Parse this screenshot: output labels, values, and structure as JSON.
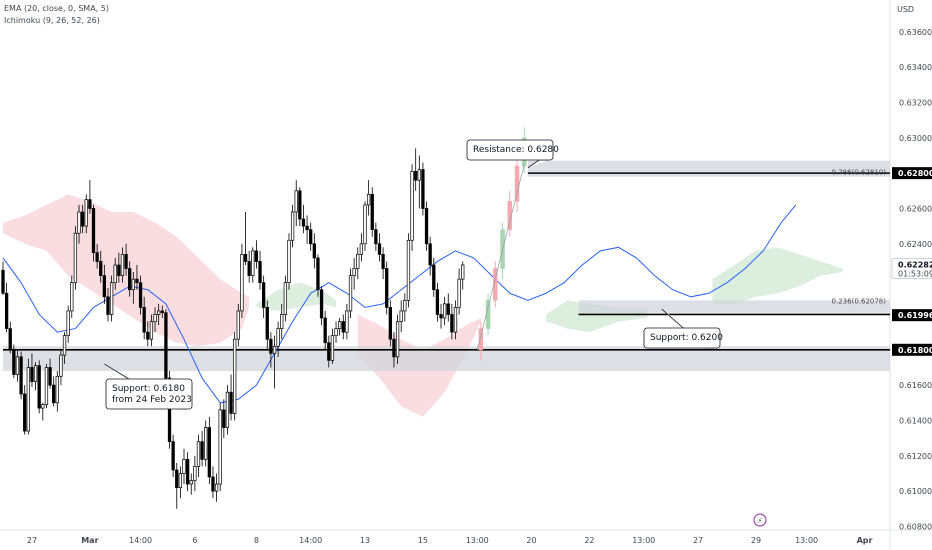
{
  "legend": {
    "ema": "EMA (20, close, 0, SMA, 5)",
    "ichimoku": "Ichimoku (9, 26, 52, 26)"
  },
  "colors": {
    "bull_body": "#ffffff",
    "bear_body": "#000000",
    "wick": "#000000",
    "ema_line": "#2962ff",
    "cloud_bear": "#f8d7da",
    "cloud_bull": "#d6ebd8",
    "zone": "#d1d4dc",
    "current_badge": "#000000",
    "projection_green": "#a5d6b0",
    "projection_red": "#f4a9b0"
  },
  "chart_data": {
    "type": "candlestick",
    "title": "",
    "currency_label": "USD",
    "y_axis": {
      "ylim": [
        0.6078,
        0.6378
      ],
      "ticks": [
        "0.63600",
        "0.63400",
        "0.63200",
        "0.63000",
        "0.62600",
        "0.62400",
        "0.62000",
        "0.61600",
        "0.61400",
        "0.61200",
        "0.61000",
        "0.60800"
      ],
      "tick_values": [
        0.636,
        0.634,
        0.632,
        0.63,
        0.626,
        0.624,
        0.62,
        0.616,
        0.614,
        0.612,
        0.61,
        0.608
      ]
    },
    "x_axis": {
      "ticks": [
        "27",
        "Mar",
        "14:00",
        "6",
        "8",
        "14:00",
        "13",
        "15",
        "13:00",
        "20",
        "22",
        "13:00",
        "27",
        "29",
        "13:00",
        "Apr"
      ],
      "tick_index": [
        8,
        24,
        38,
        53,
        70,
        85,
        100,
        116,
        131,
        146,
        162,
        177,
        192,
        208,
        222,
        238
      ]
    },
    "price_badges": [
      {
        "label": "0.62800",
        "value": 0.628,
        "style": "dark"
      },
      {
        "label": "0.62282",
        "sub": "01:53:09",
        "value": 0.62282,
        "style": "light"
      },
      {
        "label": "0.61996",
        "value": 0.61996,
        "style": "dark"
      },
      {
        "label": "0.61800",
        "value": 0.618,
        "style": "dark"
      }
    ],
    "levels": [
      {
        "value": 0.628,
        "start_index": 145,
        "zone": [
          0.6278,
          0.6287
        ]
      },
      {
        "value": 0.62,
        "start_index": 159,
        "zone": [
          0.6201,
          0.6208
        ]
      },
      {
        "value": 0.618,
        "start_index": 0,
        "zone": [
          0.6168,
          0.6182
        ]
      }
    ],
    "annotations": [
      {
        "text": "Resistance: 0.6280",
        "anchor": [
          145,
          0.6283
        ]
      },
      {
        "text": "Support: 0.6200",
        "anchor": [
          182,
          0.6203
        ]
      },
      {
        "text": "Support: 0.6180\nfrom 24 Feb 2023",
        "anchor": [
          28,
          0.6172
        ]
      }
    ],
    "fib_labels": [
      {
        "text": "0.786(0.62810)",
        "value": 0.6281
      },
      {
        "text": "0.236(0.62078)",
        "value": 0.62078
      }
    ],
    "candles": [
      [
        0.6225,
        0.623,
        0.6211,
        0.6212
      ],
      [
        0.6212,
        0.6218,
        0.619,
        0.6192
      ],
      [
        0.6192,
        0.6196,
        0.6178,
        0.618
      ],
      [
        0.618,
        0.6183,
        0.6164,
        0.6166
      ],
      [
        0.6166,
        0.618,
        0.6162,
        0.6176
      ],
      [
        0.6176,
        0.6179,
        0.6152,
        0.6155
      ],
      [
        0.6155,
        0.616,
        0.6132,
        0.6134
      ],
      [
        0.6134,
        0.6175,
        0.6132,
        0.617
      ],
      [
        0.617,
        0.6178,
        0.6159,
        0.6162
      ],
      [
        0.6162,
        0.6173,
        0.6157,
        0.6171
      ],
      [
        0.6171,
        0.6174,
        0.6144,
        0.6147
      ],
      [
        0.6147,
        0.615,
        0.614,
        0.6149
      ],
      [
        0.6149,
        0.6172,
        0.6147,
        0.617
      ],
      [
        0.617,
        0.6175,
        0.6158,
        0.616
      ],
      [
        0.616,
        0.6165,
        0.6148,
        0.615
      ],
      [
        0.615,
        0.6168,
        0.6145,
        0.6165
      ],
      [
        0.6165,
        0.618,
        0.616,
        0.6177
      ],
      [
        0.6177,
        0.619,
        0.6172,
        0.6188
      ],
      [
        0.6188,
        0.6205,
        0.6184,
        0.6202
      ],
      [
        0.6202,
        0.6222,
        0.6198,
        0.6218
      ],
      [
        0.6218,
        0.625,
        0.6214,
        0.6246
      ],
      [
        0.6246,
        0.6262,
        0.624,
        0.6258
      ],
      [
        0.6258,
        0.6262,
        0.6246,
        0.625
      ],
      [
        0.625,
        0.6268,
        0.6246,
        0.6265
      ],
      [
        0.6265,
        0.6276,
        0.6257,
        0.626
      ],
      [
        0.626,
        0.6262,
        0.623,
        0.6235
      ],
      [
        0.6235,
        0.624,
        0.6226,
        0.623
      ],
      [
        0.623,
        0.6236,
        0.6218,
        0.6222
      ],
      [
        0.6222,
        0.6228,
        0.6206,
        0.621
      ],
      [
        0.621,
        0.6215,
        0.6196,
        0.62
      ],
      [
        0.62,
        0.6222,
        0.6196,
        0.6218
      ],
      [
        0.6218,
        0.6232,
        0.6214,
        0.6228
      ],
      [
        0.6228,
        0.6235,
        0.6218,
        0.6222
      ],
      [
        0.6222,
        0.6238,
        0.6218,
        0.6234
      ],
      [
        0.6234,
        0.624,
        0.6222,
        0.6226
      ],
      [
        0.6226,
        0.623,
        0.621,
        0.6214
      ],
      [
        0.6214,
        0.6224,
        0.6206,
        0.622
      ],
      [
        0.622,
        0.6228,
        0.6214,
        0.6218
      ],
      [
        0.6218,
        0.6222,
        0.62,
        0.6204
      ],
      [
        0.6204,
        0.621,
        0.6186,
        0.619
      ],
      [
        0.619,
        0.6196,
        0.6182,
        0.6186
      ],
      [
        0.6186,
        0.62,
        0.6182,
        0.6196
      ],
      [
        0.6196,
        0.6204,
        0.619,
        0.62
      ],
      [
        0.62,
        0.6206,
        0.6194,
        0.6202
      ],
      [
        0.6202,
        0.6205,
        0.6198,
        0.6201
      ],
      [
        0.6201,
        0.6203,
        0.616,
        0.6164
      ],
      [
        0.6164,
        0.6168,
        0.6124,
        0.6128
      ],
      [
        0.6128,
        0.6132,
        0.6108,
        0.6112
      ],
      [
        0.6112,
        0.6116,
        0.609,
        0.6102
      ],
      [
        0.6102,
        0.6114,
        0.6096,
        0.611
      ],
      [
        0.611,
        0.6124,
        0.6104,
        0.6118
      ],
      [
        0.6118,
        0.6122,
        0.61,
        0.6104
      ],
      [
        0.6104,
        0.611,
        0.6098,
        0.6106
      ],
      [
        0.6106,
        0.612,
        0.61,
        0.6114
      ],
      [
        0.6114,
        0.6132,
        0.6108,
        0.6128
      ],
      [
        0.6128,
        0.6134,
        0.6114,
        0.6118
      ],
      [
        0.6118,
        0.614,
        0.6114,
        0.6136
      ],
      [
        0.6136,
        0.6142,
        0.6104,
        0.6108
      ],
      [
        0.6108,
        0.6114,
        0.6096,
        0.61
      ],
      [
        0.61,
        0.611,
        0.6094,
        0.6104
      ],
      [
        0.6104,
        0.615,
        0.61,
        0.6146
      ],
      [
        0.6146,
        0.6152,
        0.613,
        0.6136
      ],
      [
        0.6136,
        0.616,
        0.6132,
        0.6156
      ],
      [
        0.6156,
        0.6166,
        0.614,
        0.6144
      ],
      [
        0.6144,
        0.619,
        0.614,
        0.6186
      ],
      [
        0.6186,
        0.6206,
        0.6182,
        0.6202
      ],
      [
        0.6202,
        0.624,
        0.6198,
        0.6234
      ],
      [
        0.6234,
        0.6258,
        0.6228,
        0.623
      ],
      [
        0.623,
        0.6236,
        0.6218,
        0.6222
      ],
      [
        0.6222,
        0.6238,
        0.6218,
        0.6236
      ],
      [
        0.6236,
        0.6242,
        0.6226,
        0.623
      ],
      [
        0.623,
        0.6236,
        0.6214,
        0.6218
      ],
      [
        0.6218,
        0.6222,
        0.6198,
        0.6204
      ],
      [
        0.6204,
        0.6208,
        0.618,
        0.6186
      ],
      [
        0.6186,
        0.619,
        0.617,
        0.6178
      ],
      [
        0.6178,
        0.6188,
        0.6158,
        0.6182
      ],
      [
        0.6182,
        0.6196,
        0.6176,
        0.6192
      ],
      [
        0.6192,
        0.6206,
        0.6186,
        0.62
      ],
      [
        0.62,
        0.6222,
        0.6196,
        0.6218
      ],
      [
        0.6218,
        0.6246,
        0.6214,
        0.6242
      ],
      [
        0.6242,
        0.6262,
        0.6238,
        0.6258
      ],
      [
        0.6258,
        0.6276,
        0.625,
        0.627
      ],
      [
        0.627,
        0.6272,
        0.625,
        0.6254
      ],
      [
        0.6254,
        0.6262,
        0.6246,
        0.625
      ],
      [
        0.625,
        0.6256,
        0.624,
        0.6248
      ],
      [
        0.6248,
        0.6252,
        0.6236,
        0.624
      ],
      [
        0.624,
        0.6246,
        0.6226,
        0.6232
      ],
      [
        0.6232,
        0.6234,
        0.621,
        0.6214
      ],
      [
        0.6214,
        0.6216,
        0.6194,
        0.6198
      ],
      [
        0.6198,
        0.6202,
        0.618,
        0.6184
      ],
      [
        0.6184,
        0.6188,
        0.617,
        0.6174
      ],
      [
        0.6174,
        0.6192,
        0.6172,
        0.6188
      ],
      [
        0.6188,
        0.6196,
        0.6184,
        0.6192
      ],
      [
        0.6192,
        0.6198,
        0.6188,
        0.6196
      ],
      [
        0.6196,
        0.62,
        0.6186,
        0.619
      ],
      [
        0.619,
        0.6206,
        0.6186,
        0.6202
      ],
      [
        0.6202,
        0.6226,
        0.6198,
        0.6222
      ],
      [
        0.6222,
        0.6232,
        0.6214,
        0.6226
      ],
      [
        0.6226,
        0.6238,
        0.622,
        0.6234
      ],
      [
        0.6234,
        0.6246,
        0.623,
        0.624
      ],
      [
        0.624,
        0.6264,
        0.6236,
        0.6262
      ],
      [
        0.6262,
        0.6276,
        0.6256,
        0.6268
      ],
      [
        0.6268,
        0.6272,
        0.6244,
        0.6248
      ],
      [
        0.6248,
        0.6252,
        0.6236,
        0.624
      ],
      [
        0.624,
        0.6246,
        0.623,
        0.6234
      ],
      [
        0.6234,
        0.6238,
        0.622,
        0.6226
      ],
      [
        0.6226,
        0.623,
        0.62,
        0.6204
      ],
      [
        0.6204,
        0.6208,
        0.6182,
        0.6186
      ],
      [
        0.6186,
        0.619,
        0.617,
        0.6176
      ],
      [
        0.6176,
        0.62,
        0.6172,
        0.6196
      ],
      [
        0.6196,
        0.6208,
        0.619,
        0.6202
      ],
      [
        0.6202,
        0.6212,
        0.6196,
        0.6208
      ],
      [
        0.6208,
        0.6246,
        0.6204,
        0.6242
      ],
      [
        0.6242,
        0.6285,
        0.6236,
        0.6281
      ],
      [
        0.6281,
        0.6294,
        0.627,
        0.6276
      ],
      [
        0.6276,
        0.629,
        0.626,
        0.6282
      ],
      [
        0.6282,
        0.6286,
        0.6256,
        0.626
      ],
      [
        0.626,
        0.6264,
        0.6236,
        0.624
      ],
      [
        0.624,
        0.6244,
        0.6222,
        0.6228
      ],
      [
        0.6228,
        0.6232,
        0.621,
        0.6214
      ],
      [
        0.6214,
        0.6218,
        0.6196,
        0.62
      ],
      [
        0.62,
        0.6206,
        0.6192,
        0.6198
      ],
      [
        0.6198,
        0.621,
        0.6194,
        0.6206
      ],
      [
        0.6206,
        0.6212,
        0.6196,
        0.62
      ],
      [
        0.62,
        0.6206,
        0.6186,
        0.619
      ],
      [
        0.619,
        0.6208,
        0.6186,
        0.6204
      ],
      [
        0.6204,
        0.6226,
        0.62,
        0.622
      ],
      [
        0.622,
        0.623,
        0.6214,
        0.6228
      ]
    ],
    "projection": [
      [
        0.618,
        0.6196,
        0.6174,
        0.6192,
        "red"
      ],
      [
        0.6192,
        0.6212,
        0.6188,
        0.6208,
        "green"
      ],
      [
        0.6208,
        0.623,
        0.6204,
        0.6226,
        "red"
      ],
      [
        0.6226,
        0.6252,
        0.622,
        0.6248,
        "green"
      ],
      [
        0.6248,
        0.627,
        0.6244,
        0.6264,
        "red"
      ],
      [
        0.6264,
        0.6288,
        0.6258,
        0.6284,
        "red"
      ],
      [
        0.6284,
        0.6306,
        0.628,
        0.63,
        "green"
      ]
    ],
    "ema": [
      [
        0,
        0.6232
      ],
      [
        5,
        0.6218
      ],
      [
        10,
        0.62
      ],
      [
        15,
        0.619
      ],
      [
        20,
        0.6192
      ],
      [
        25,
        0.6204
      ],
      [
        30,
        0.621
      ],
      [
        35,
        0.6216
      ],
      [
        40,
        0.6214
      ],
      [
        45,
        0.6206
      ],
      [
        50,
        0.6186
      ],
      [
        55,
        0.6164
      ],
      [
        60,
        0.615
      ],
      [
        65,
        0.6152
      ],
      [
        70,
        0.616
      ],
      [
        75,
        0.6178
      ],
      [
        80,
        0.6196
      ],
      [
        85,
        0.6212
      ],
      [
        90,
        0.6218
      ],
      [
        95,
        0.6212
      ],
      [
        100,
        0.6204
      ],
      [
        105,
        0.6206
      ],
      [
        110,
        0.6214
      ],
      [
        115,
        0.6222
      ],
      [
        120,
        0.623
      ],
      [
        125,
        0.6236
      ],
      [
        130,
        0.6232
      ],
      [
        135,
        0.6222
      ],
      [
        140,
        0.6212
      ],
      [
        145,
        0.6208
      ],
      [
        150,
        0.6212
      ],
      [
        155,
        0.6218
      ],
      [
        160,
        0.6228
      ],
      [
        165,
        0.6236
      ],
      [
        170,
        0.6238
      ],
      [
        175,
        0.6232
      ],
      [
        180,
        0.6222
      ],
      [
        185,
        0.6214
      ],
      [
        190,
        0.621
      ],
      [
        195,
        0.6212
      ],
      [
        200,
        0.6218
      ],
      [
        205,
        0.6226
      ],
      [
        210,
        0.6236
      ],
      [
        215,
        0.6252
      ],
      [
        219,
        0.6262
      ]
    ],
    "cloud_red": [
      [
        0,
        0.6252,
        0.6246
      ],
      [
        6,
        0.6256,
        0.624
      ],
      [
        12,
        0.6262,
        0.6236
      ],
      [
        18,
        0.6268,
        0.6222
      ],
      [
        24,
        0.6264,
        0.6214
      ],
      [
        30,
        0.6258,
        0.6206
      ],
      [
        36,
        0.6258,
        0.6198
      ],
      [
        42,
        0.6252,
        0.619
      ],
      [
        48,
        0.6244,
        0.6184
      ],
      [
        54,
        0.6232,
        0.6182
      ],
      [
        60,
        0.622,
        0.6184
      ],
      [
        66,
        0.6212,
        0.6192
      ],
      [
        68,
        0.621,
        0.6204
      ]
    ],
    "cloud_red2": [
      [
        98,
        0.62,
        0.6178
      ],
      [
        104,
        0.6194,
        0.6164
      ],
      [
        110,
        0.6186,
        0.6148
      ],
      [
        116,
        0.618,
        0.6142
      ],
      [
        122,
        0.6186,
        0.6156
      ],
      [
        128,
        0.6194,
        0.6178
      ],
      [
        132,
        0.6198,
        0.6196
      ]
    ],
    "cloud_green": [
      [
        70,
        0.6206,
        0.6204
      ],
      [
        76,
        0.6214,
        0.6202
      ],
      [
        82,
        0.6218,
        0.6204
      ],
      [
        88,
        0.6214,
        0.6206
      ],
      [
        92,
        0.6208,
        0.6204
      ]
    ],
    "cloud_green2": [
      [
        150,
        0.62,
        0.6196
      ],
      [
        156,
        0.6208,
        0.6192
      ],
      [
        162,
        0.6206,
        0.619
      ],
      [
        170,
        0.6204,
        0.6196
      ],
      [
        178,
        0.6204,
        0.6198
      ]
    ],
    "cloud_green3": [
      [
        196,
        0.622,
        0.6206
      ],
      [
        202,
        0.6228,
        0.6206
      ],
      [
        208,
        0.6236,
        0.621
      ],
      [
        214,
        0.6238,
        0.6212
      ],
      [
        220,
        0.6234,
        0.6216
      ],
      [
        226,
        0.623,
        0.6222
      ],
      [
        232,
        0.6226,
        0.6224
      ]
    ]
  }
}
